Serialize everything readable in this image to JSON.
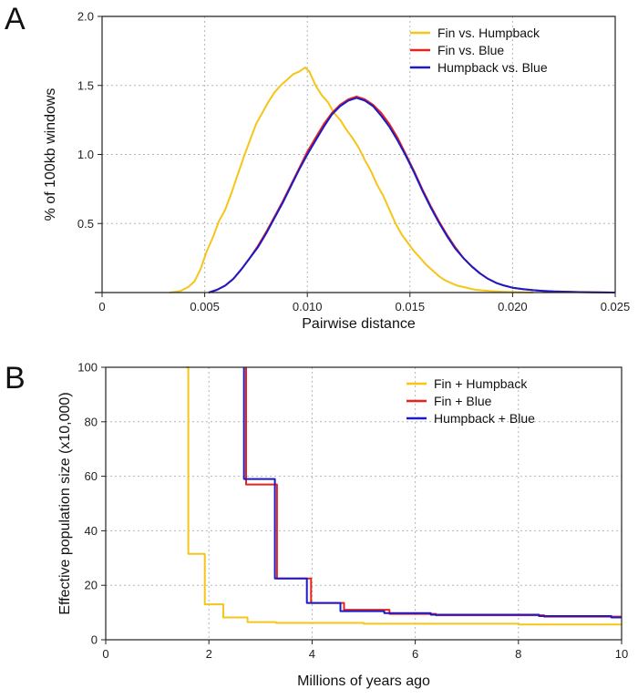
{
  "chart_data": [
    {
      "panel": "A",
      "type": "line",
      "xlabel": "Pairwise distance",
      "ylabel": "% of 100kb windows",
      "xlim": [
        0,
        0.025
      ],
      "ylim": [
        0,
        2.0
      ],
      "xticks": [
        0,
        0.005,
        0.01,
        0.015,
        0.02,
        0.025
      ],
      "xtick_labels": [
        "0",
        "0.005",
        "0.010",
        "0.015",
        "0.020",
        "0.025"
      ],
      "yticks": [
        0.5,
        1.0,
        1.5,
        2.0
      ],
      "ytick_labels": [
        "0.5",
        "1.0",
        "1.5",
        "2.0"
      ],
      "grid": true,
      "legend_position": "top-right",
      "series": [
        {
          "name": "Fin vs. Humpback",
          "color": "#F5C518",
          "x": [
            0.0033,
            0.0038,
            0.0042,
            0.0045,
            0.0048,
            0.0051,
            0.0054,
            0.0057,
            0.006,
            0.0063,
            0.0066,
            0.0069,
            0.0072,
            0.0075,
            0.0078,
            0.0081,
            0.0084,
            0.0087,
            0.009,
            0.0093,
            0.0096,
            0.0099,
            0.0101,
            0.0104,
            0.0107,
            0.011,
            0.0113,
            0.0116,
            0.0119,
            0.0122,
            0.0125,
            0.0128,
            0.0131,
            0.0134,
            0.0137,
            0.014,
            0.0143,
            0.0146,
            0.0149,
            0.0152,
            0.0155,
            0.0158,
            0.0161,
            0.0164,
            0.0167,
            0.017,
            0.0173,
            0.0176,
            0.0179,
            0.0182,
            0.0186,
            0.019,
            0.0195,
            0.02,
            0.0205,
            0.021
          ],
          "y": [
            0.0,
            0.01,
            0.04,
            0.08,
            0.17,
            0.3,
            0.4,
            0.52,
            0.6,
            0.72,
            0.85,
            0.98,
            1.1,
            1.22,
            1.3,
            1.38,
            1.45,
            1.5,
            1.54,
            1.58,
            1.6,
            1.63,
            1.6,
            1.5,
            1.43,
            1.38,
            1.3,
            1.25,
            1.18,
            1.12,
            1.05,
            0.96,
            0.88,
            0.78,
            0.7,
            0.6,
            0.5,
            0.42,
            0.36,
            0.3,
            0.25,
            0.2,
            0.16,
            0.12,
            0.09,
            0.07,
            0.05,
            0.04,
            0.03,
            0.02,
            0.015,
            0.01,
            0.006,
            0.003,
            0.001,
            0.0
          ]
        },
        {
          "name": "Fin vs. Blue",
          "color": "#E8231E",
          "x": [
            0.0052,
            0.0056,
            0.006,
            0.0064,
            0.0068,
            0.0072,
            0.0076,
            0.008,
            0.0084,
            0.0088,
            0.0092,
            0.0096,
            0.01,
            0.0104,
            0.0108,
            0.0112,
            0.0116,
            0.012,
            0.0124,
            0.0128,
            0.0132,
            0.0136,
            0.014,
            0.0144,
            0.0148,
            0.0152,
            0.0156,
            0.016,
            0.0164,
            0.0168,
            0.0172,
            0.0176,
            0.018,
            0.0184,
            0.0188,
            0.0192,
            0.0196,
            0.02,
            0.0205,
            0.021,
            0.0215,
            0.022,
            0.023,
            0.024,
            0.025
          ],
          "y": [
            0.0,
            0.02,
            0.05,
            0.1,
            0.17,
            0.25,
            0.34,
            0.44,
            0.55,
            0.66,
            0.78,
            0.9,
            1.02,
            1.12,
            1.22,
            1.3,
            1.36,
            1.4,
            1.42,
            1.4,
            1.36,
            1.3,
            1.22,
            1.12,
            1.0,
            0.88,
            0.75,
            0.63,
            0.52,
            0.42,
            0.33,
            0.25,
            0.19,
            0.14,
            0.1,
            0.07,
            0.05,
            0.035,
            0.025,
            0.017,
            0.012,
            0.008,
            0.004,
            0.002,
            0.0
          ]
        },
        {
          "name": "Humpback vs. Blue",
          "color": "#1A1AC8",
          "x": [
            0.0052,
            0.0056,
            0.006,
            0.0064,
            0.0068,
            0.0072,
            0.0076,
            0.008,
            0.0084,
            0.0088,
            0.0092,
            0.0096,
            0.01,
            0.0104,
            0.0108,
            0.0112,
            0.0116,
            0.012,
            0.0124,
            0.0128,
            0.0132,
            0.0136,
            0.014,
            0.0144,
            0.0148,
            0.0152,
            0.0156,
            0.016,
            0.0164,
            0.0168,
            0.0172,
            0.0176,
            0.018,
            0.0184,
            0.0188,
            0.0192,
            0.0196,
            0.02,
            0.0205,
            0.021,
            0.0215,
            0.022,
            0.023,
            0.024,
            0.025
          ],
          "y": [
            0.0,
            0.02,
            0.05,
            0.1,
            0.17,
            0.25,
            0.33,
            0.43,
            0.54,
            0.65,
            0.77,
            0.89,
            1.0,
            1.1,
            1.2,
            1.29,
            1.35,
            1.39,
            1.41,
            1.39,
            1.35,
            1.28,
            1.2,
            1.1,
            0.99,
            0.87,
            0.74,
            0.62,
            0.51,
            0.41,
            0.32,
            0.25,
            0.19,
            0.14,
            0.1,
            0.07,
            0.05,
            0.035,
            0.025,
            0.017,
            0.012,
            0.008,
            0.004,
            0.002,
            0.0
          ]
        }
      ]
    },
    {
      "panel": "B",
      "type": "line",
      "step": true,
      "xlabel": "Millions of years ago",
      "ylabel": "Effective population size (x10,000)",
      "xlim": [
        0,
        10
      ],
      "ylim": [
        0,
        100
      ],
      "xticks": [
        0,
        2,
        4,
        6,
        8,
        10
      ],
      "xtick_labels": [
        "0",
        "2",
        "4",
        "6",
        "8",
        "10"
      ],
      "yticks": [
        0,
        20,
        40,
        60,
        80,
        100
      ],
      "ytick_labels": [
        "0",
        "20",
        "40",
        "60",
        "80",
        "100"
      ],
      "grid": true,
      "legend_position": "top-right",
      "series": [
        {
          "name": "Fin + Humpback",
          "color": "#F5C518",
          "x": [
            1.56,
            1.56,
            1.6,
            1.6,
            1.92,
            1.92,
            2.28,
            2.28,
            2.75,
            2.75,
            3.3,
            3.3,
            5.0,
            5.0,
            8.0,
            8.0,
            10.0
          ],
          "y": [
            100,
            100,
            100,
            31.5,
            31.5,
            13.0,
            13.0,
            8.2,
            8.2,
            6.5,
            6.5,
            6.2,
            6.2,
            5.9,
            5.9,
            5.6,
            5.6
          ]
        },
        {
          "name": "Fin + Blue",
          "color": "#E8231E",
          "x": [
            2.72,
            2.72,
            3.32,
            3.32,
            3.98,
            3.98,
            4.62,
            4.62,
            5.5,
            5.5,
            6.4,
            6.4,
            8.5,
            8.5,
            10.0
          ],
          "y": [
            100,
            57.0,
            57.0,
            22.5,
            22.5,
            13.5,
            13.5,
            11.0,
            11.0,
            9.5,
            9.5,
            9.0,
            9.0,
            8.5,
            8.5
          ]
        },
        {
          "name": "Humpback + Blue",
          "color": "#1A1AC8",
          "x": [
            2.68,
            2.68,
            3.28,
            3.28,
            3.9,
            3.9,
            4.55,
            4.55,
            5.4,
            5.4,
            6.3,
            6.3,
            8.4,
            8.4,
            9.8,
            9.8,
            10.0
          ],
          "y": [
            100,
            59.0,
            59.0,
            22.5,
            22.5,
            13.5,
            13.5,
            10.5,
            10.5,
            9.8,
            9.8,
            9.2,
            9.2,
            8.7,
            8.7,
            8.2,
            8.2
          ]
        }
      ]
    }
  ]
}
